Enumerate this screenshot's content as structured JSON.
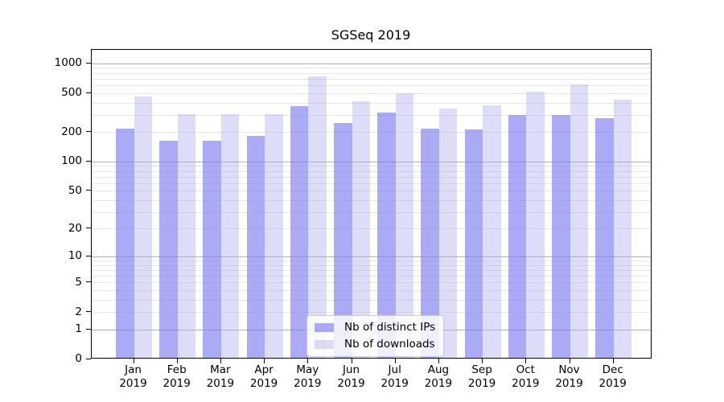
{
  "title": "SGSeq 2019",
  "chart_data": {
    "type": "bar",
    "title": "SGSeq 2019",
    "categories": [
      "Jan 2019",
      "Feb 2019",
      "Mar 2019",
      "Apr 2019",
      "May 2019",
      "Jun 2019",
      "Jul 2019",
      "Aug 2019",
      "Sep 2019",
      "Oct 2019",
      "Nov 2019",
      "Dec 2019"
    ],
    "series": [
      {
        "name": "Nb of distinct IPs",
        "color_key": "distinct_ips",
        "values": [
          212,
          159,
          160,
          178,
          356,
          240,
          309,
          211,
          208,
          289,
          289,
          269
        ]
      },
      {
        "name": "Nb of downloads",
        "color_key": "downloads",
        "values": [
          450,
          294,
          295,
          298,
          717,
          402,
          481,
          338,
          364,
          502,
          595,
          416
        ]
      }
    ],
    "xlabel": "",
    "ylabel": "",
    "yscale": "log1p",
    "yticks": [
      0,
      1,
      2,
      5,
      10,
      20,
      50,
      100,
      200,
      500,
      1000
    ],
    "ylim": [
      0,
      1385
    ],
    "grid": "horizontal major and log-minor gridlines",
    "legend_position": "lower center"
  },
  "legend": {
    "items": [
      {
        "label": "Nb of distinct IPs"
      },
      {
        "label": "Nb of downloads"
      }
    ]
  },
  "colors": {
    "distinct_ips": "rgba(124,124,240,0.65)",
    "downloads": "rgba(170,170,235,0.40)",
    "major_grid": "#b0b0b0",
    "minor_grid": "#e7e7e7",
    "axis": "#000000",
    "legend_border": "#cccccc",
    "background": "#ffffff",
    "text": "#000000"
  }
}
